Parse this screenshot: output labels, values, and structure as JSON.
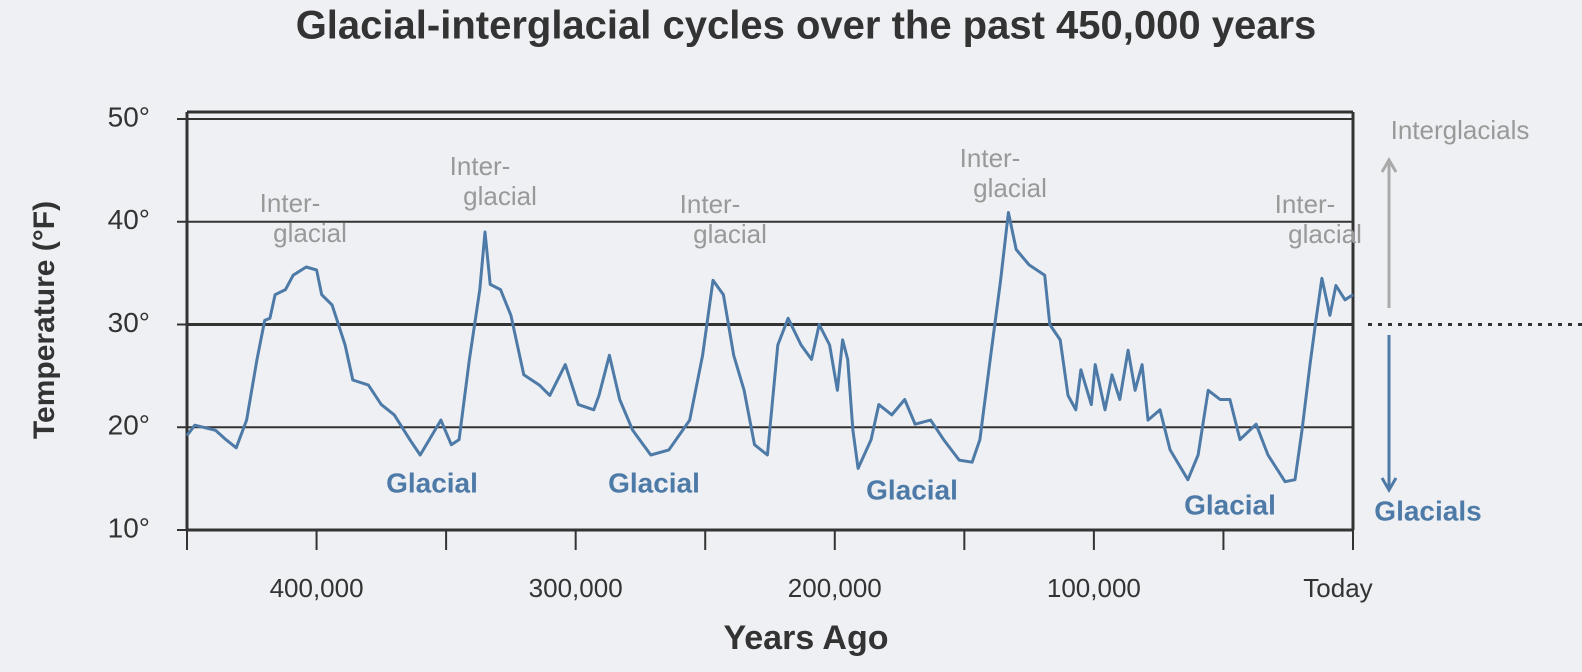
{
  "chart_data": {
    "type": "line",
    "title": "Glacial-interglacial cycles over the past 450,000 years",
    "x_label": "Years Ago",
    "y_label": "Temperature (°F)",
    "xlim": [
      450000,
      0
    ],
    "ylim": [
      10,
      50
    ],
    "xticks": [
      {
        "value": 400000,
        "label": "400,000"
      },
      {
        "value": 300000,
        "label": "300,000"
      },
      {
        "value": 200000,
        "label": "200,000"
      },
      {
        "value": 100000,
        "label": "100,000"
      },
      {
        "value": 0,
        "label": "Today"
      }
    ],
    "xminorticks": [
      450000,
      350000,
      250000,
      150000,
      50000
    ],
    "yticks": [
      {
        "value": 10,
        "label": "10°"
      },
      {
        "value": 20,
        "label": "20°"
      },
      {
        "value": 30,
        "label": "30°"
      },
      {
        "value": 40,
        "label": "40°"
      },
      {
        "value": 50,
        "label": "50°"
      }
    ],
    "grid": true,
    "reference_line": 30,
    "series": [
      {
        "color": "#4e7aa8",
        "x": [
          450000,
          447000,
          439000,
          435000,
          431000,
          427000,
          423000,
          420000,
          418000,
          416000,
          412000,
          409000,
          404000,
          400000,
          398000,
          394000,
          389000,
          386000,
          380000,
          375000,
          370000,
          364000,
          360000,
          352000,
          348000,
          345000,
          341000,
          337000,
          335000,
          333000,
          329000,
          325000,
          320000,
          314000,
          310000,
          304000,
          299000,
          293000,
          291000,
          287000,
          283000,
          278000,
          271000,
          264000,
          256000,
          251000,
          247000,
          243000,
          239000,
          235000,
          231000,
          226000,
          222000,
          218000,
          213000,
          209000,
          206000,
          202000,
          199000,
          197000,
          195000,
          193000,
          191000,
          186000,
          183000,
          178000,
          173000,
          169000,
          163000,
          158000,
          152000,
          147000,
          144000,
          140000,
          136000,
          133000,
          130000,
          125000,
          119000,
          117000,
          113000,
          110000,
          107000,
          105000,
          101000,
          99500,
          95700,
          93000,
          90000,
          86800,
          84100,
          81400,
          79100,
          74500,
          70600,
          63700,
          59800,
          55900,
          51300,
          47500,
          43600,
          37400,
          32800,
          26200,
          22400,
          19700,
          16600,
          14300,
          12000,
          8900,
          6600,
          3100,
          0
        ],
        "values": [
          19.2,
          20.2,
          19.7,
          18.8,
          18,
          20.7,
          26.6,
          30.4,
          30.6,
          32.9,
          33.4,
          34.8,
          35.6,
          35.3,
          32.9,
          31.9,
          28,
          24.6,
          24.1,
          22.2,
          21.2,
          18.8,
          17.3,
          20.7,
          18.3,
          18.8,
          26.6,
          33.4,
          39,
          33.9,
          33.4,
          30.9,
          25.1,
          24.1,
          23.1,
          26.1,
          22.2,
          21.7,
          23.1,
          27,
          22.7,
          19.7,
          17.3,
          17.8,
          20.7,
          27,
          34.3,
          32.9,
          27,
          23.6,
          18.3,
          17.3,
          28,
          30.6,
          28,
          26.6,
          30,
          28,
          23.6,
          28.5,
          26.6,
          19.7,
          16,
          18.8,
          22.2,
          21.2,
          22.7,
          20.3,
          20.7,
          18.8,
          16.8,
          16.6,
          18.8,
          26.6,
          34.3,
          40.9,
          37.3,
          35.8,
          34.8,
          30,
          28.5,
          23.1,
          21.7,
          25.6,
          22.2,
          26.1,
          21.7,
          25.1,
          22.7,
          27.5,
          23.6,
          26.1,
          20.7,
          21.7,
          17.8,
          14.9,
          17.3,
          23.6,
          22.7,
          22.7,
          18.8,
          20.3,
          17.3,
          14.7,
          14.9,
          19.7,
          26.1,
          30.4,
          34.5,
          30.9,
          33.8,
          32.4,
          32.9
        ]
      }
    ],
    "interglacial_labels": [
      [
        "Inter-",
        "glacial"
      ],
      [
        "Inter-",
        "glacial"
      ],
      [
        "Inter-",
        "glacial"
      ],
      [
        "Inter-",
        "glacial"
      ],
      [
        "Inter-",
        "glacial"
      ]
    ],
    "glacial_labels": [
      "Glacial",
      "Glacial",
      "Glacial",
      "Glacial"
    ],
    "legend_up": "Interglacials",
    "legend_down": "Glacials"
  }
}
